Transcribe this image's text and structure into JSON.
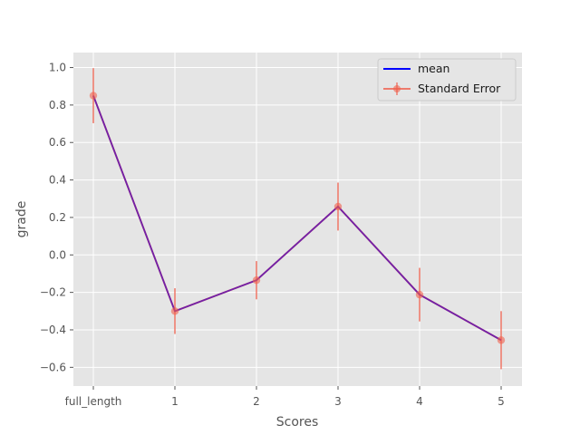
{
  "chart_data": {
    "type": "line",
    "xlabel": "Scores",
    "ylabel": "grade",
    "categories": [
      "full_length",
      "1",
      "2",
      "3",
      "4",
      "5"
    ],
    "series": [
      {
        "name": "mean",
        "values": [
          0.85,
          -0.3,
          -0.135,
          0.258,
          -0.212,
          -0.455
        ]
      },
      {
        "name": "Standard Error",
        "values": [
          0.85,
          -0.3,
          -0.135,
          0.258,
          -0.212,
          -0.455
        ],
        "errors": [
          0.147,
          0.122,
          0.102,
          0.128,
          0.143,
          0.155
        ]
      }
    ],
    "ylim": [
      -0.7,
      1.08
    ],
    "yticks": [
      1.0,
      0.8,
      0.6,
      0.4,
      0.2,
      0.0,
      -0.2,
      -0.4,
      -0.6
    ],
    "ytick_labels": [
      "1.0",
      "0.8",
      "0.6",
      "0.4",
      "0.2",
      "0.0",
      "−0.2",
      "−0.4",
      "−0.6"
    ],
    "grid": true,
    "legend_position": "top-right",
    "colors": {
      "background": "#e5e5e5",
      "grid": "#ffffff",
      "mean": "#0000ff",
      "error": "#f0604d",
      "overlap": "#7020a8"
    }
  }
}
